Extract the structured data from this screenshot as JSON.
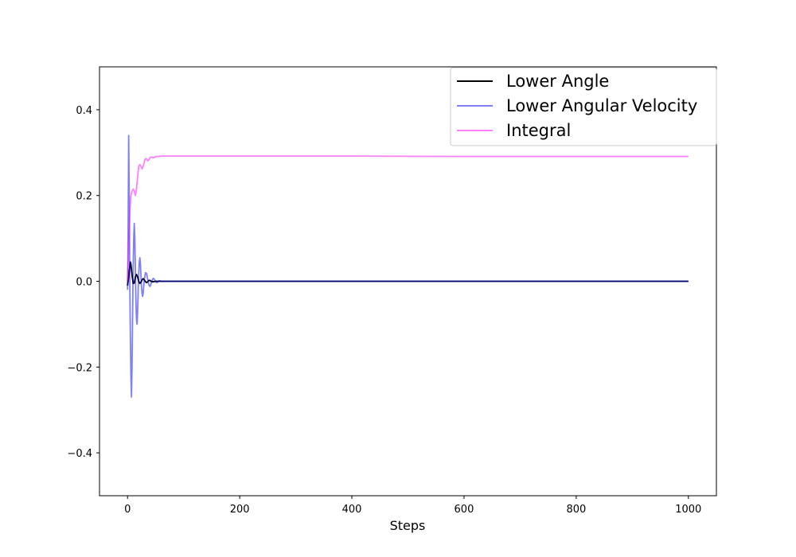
{
  "chart_data": {
    "type": "line",
    "title": "",
    "xlabel": "Steps",
    "ylabel": "",
    "xlim": [
      -50,
      1050
    ],
    "ylim": [
      -0.5,
      0.5
    ],
    "xticks": [
      0,
      200,
      400,
      600,
      800,
      1000
    ],
    "xtick_labels": [
      "0",
      "200",
      "400",
      "600",
      "800",
      "1000"
    ],
    "yticks": [
      -0.4,
      -0.2,
      0.0,
      0.2,
      0.4
    ],
    "ytick_labels": [
      "−0.4",
      "−0.2",
      "0.0",
      "0.2",
      "0.4"
    ],
    "grid": false,
    "legend_position": "top-right",
    "series": [
      {
        "name": "Lower Angle",
        "color": "#000000",
        "opacity": 1,
        "x": [
          0,
          2,
          4,
          5,
          6,
          8,
          10,
          12,
          14,
          16,
          18,
          20,
          22,
          24,
          26,
          28,
          30,
          32,
          34,
          36,
          38,
          40,
          42,
          44,
          46,
          50,
          55,
          60,
          70,
          80,
          100,
          200,
          400,
          600,
          800,
          1000
        ],
        "y": [
          -0.01,
          0.01,
          0.035,
          0.045,
          0.04,
          0.015,
          -0.005,
          -0.004,
          0.01,
          0.016,
          0.01,
          0.0,
          -0.005,
          -0.002,
          0.004,
          0.006,
          0.003,
          -0.001,
          -0.003,
          -0.001,
          0.002,
          0.002,
          0.0,
          -0.001,
          -0.001,
          0.0,
          0.0,
          0.0,
          0.0,
          0.0,
          0.0,
          0.0,
          0.0,
          0.0,
          0.0,
          0.0
        ]
      },
      {
        "name": "Lower Angular Velocity",
        "color": "#0000ee",
        "opacity": 0.5,
        "x": [
          0,
          1,
          2,
          3,
          4,
          5,
          6,
          7,
          8,
          9,
          10,
          11,
          12,
          13,
          14,
          15,
          16,
          17,
          18,
          19,
          20,
          21,
          22,
          23,
          24,
          25,
          26,
          27,
          28,
          30,
          32,
          34,
          36,
          38,
          40,
          42,
          44,
          46,
          48,
          50,
          52,
          54,
          56,
          58,
          60,
          65,
          70,
          80,
          100,
          200,
          400,
          600,
          800,
          1000
        ],
        "y": [
          -0.02,
          0.1,
          0.34,
          0.2,
          0.0,
          -0.12,
          -0.22,
          -0.27,
          -0.2,
          -0.08,
          0.03,
          0.1,
          0.135,
          0.1,
          0.02,
          -0.05,
          -0.09,
          -0.1,
          -0.07,
          -0.02,
          0.02,
          0.045,
          0.055,
          0.04,
          0.01,
          -0.015,
          -0.03,
          -0.035,
          -0.025,
          0.005,
          0.02,
          0.018,
          0.004,
          -0.008,
          -0.012,
          -0.006,
          0.003,
          0.007,
          0.004,
          -0.001,
          -0.003,
          -0.002,
          0.001,
          0.001,
          0.0,
          0.0,
          0.0,
          0.0,
          0.0,
          0.0,
          0.0,
          0.0,
          0.0,
          0.0
        ]
      },
      {
        "name": "Integral",
        "color": "#ff00ff",
        "opacity": 0.5,
        "x": [
          0,
          2,
          4,
          6,
          8,
          10,
          12,
          14,
          16,
          18,
          20,
          22,
          24,
          26,
          28,
          30,
          32,
          34,
          36,
          38,
          40,
          42,
          44,
          46,
          48,
          50,
          55,
          60,
          70,
          80,
          100,
          200,
          400,
          600,
          800,
          1000
        ],
        "y": [
          0.0,
          0.08,
          0.16,
          0.2,
          0.21,
          0.215,
          0.21,
          0.2,
          0.215,
          0.245,
          0.268,
          0.272,
          0.268,
          0.262,
          0.268,
          0.28,
          0.286,
          0.285,
          0.281,
          0.283,
          0.288,
          0.29,
          0.289,
          0.288,
          0.289,
          0.291,
          0.291,
          0.292,
          0.292,
          0.292,
          0.292,
          0.292,
          0.292,
          0.291,
          0.291,
          0.291
        ]
      }
    ]
  }
}
